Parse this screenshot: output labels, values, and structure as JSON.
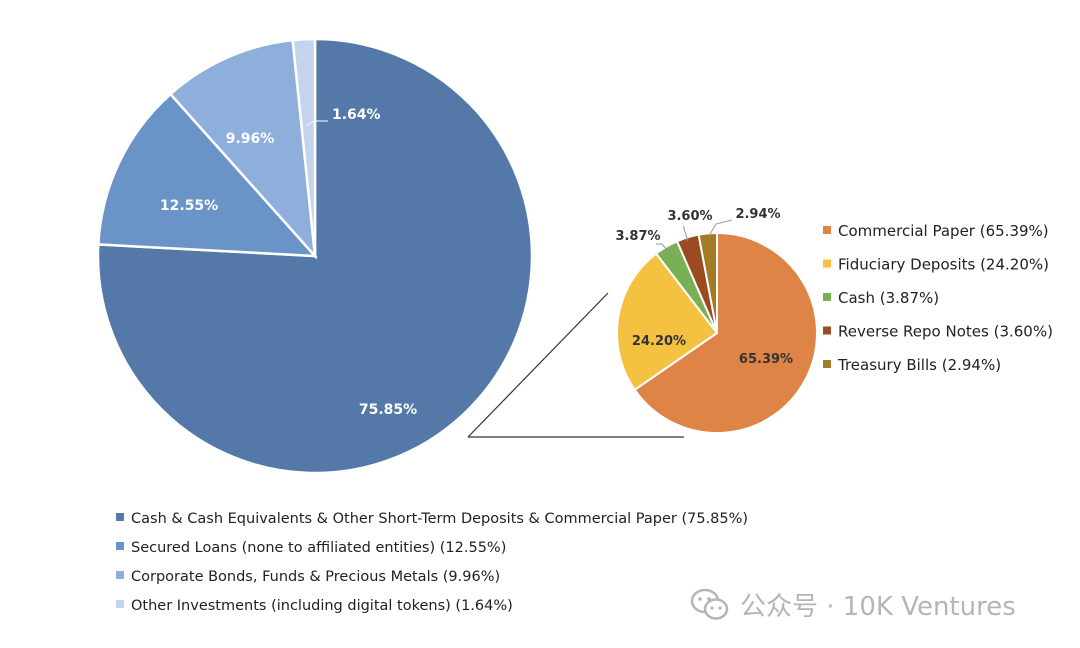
{
  "chart_data": [
    {
      "type": "pie",
      "slices": [
        {
          "label": "Cash & Cash Equivalents & Other Short-Term Deposits & Commercial Paper (75.85%)",
          "value": 75.85,
          "display": "75.85%",
          "color": "#5479a8"
        },
        {
          "label": "Secured Loans (none to affiliated entities) (12.55%)",
          "value": 12.55,
          "display": "12.55%",
          "color": "#6a93c8"
        },
        {
          "label": "Corporate Bonds, Funds & Precious Metals (9.96%)",
          "value": 9.96,
          "display": "9.96%",
          "color": "#8eaedc"
        },
        {
          "label": "Other Investments (including digital tokens) (1.64%)",
          "value": 1.64,
          "display": "1.64%",
          "color": "#c3d4ec"
        }
      ],
      "legend_position": "bottom"
    },
    {
      "type": "pie",
      "slices": [
        {
          "label": "Commercial Paper (65.39%)",
          "value": 65.39,
          "display": "65.39%",
          "color": "#dd8446"
        },
        {
          "label": "Fiduciary Deposits (24.20%)",
          "value": 24.2,
          "display": "24.20%",
          "color": "#f4c141"
        },
        {
          "label": "Cash (3.87%)",
          "value": 3.87,
          "display": "3.87%",
          "color": "#79af55"
        },
        {
          "label": "Reverse Repo Notes (3.60%)",
          "value": 3.6,
          "display": "3.60%",
          "color": "#9c4a1f"
        },
        {
          "label": "Treasury Bills (2.94%)",
          "value": 2.94,
          "display": "2.94%",
          "color": "#a17c22"
        }
      ],
      "legend_position": "right"
    }
  ],
  "watermark": {
    "text": "公众号 · 10K Ventures",
    "icon": "wechat-icon"
  }
}
